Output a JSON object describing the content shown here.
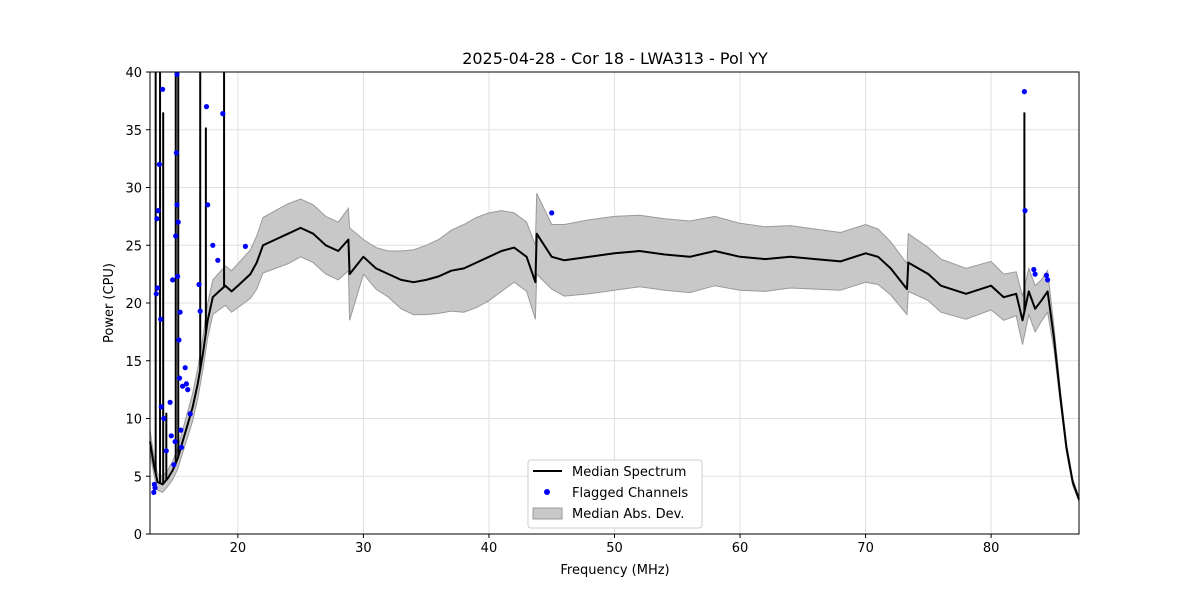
{
  "chart_data": {
    "type": "line",
    "title": "2025-04-28 - Cor 18 - LWA313 - Pol YY",
    "xlabel": "Frequency (MHz)",
    "ylabel": "Power (CPU)",
    "xlim": [
      13.0,
      87.0
    ],
    "ylim": [
      0,
      40
    ],
    "xticks": [
      20,
      30,
      40,
      50,
      60,
      70,
      80
    ],
    "yticks": [
      0,
      5,
      10,
      15,
      20,
      25,
      30,
      35,
      40
    ],
    "grid": true,
    "legend_position": "bottom-center",
    "legend": [
      "Median Spectrum",
      "Flagged Channels",
      "Median Abs. Dev."
    ],
    "colors": {
      "median": "#000000",
      "flagged": "#0000ff",
      "mad_fill": "#c8c8c8",
      "mad_edge": "#9a9a9a",
      "grid": "#e0e0e0"
    },
    "series": [
      {
        "name": "Median Spectrum",
        "x": [
          13.0,
          13.3,
          13.6,
          14.0,
          14.4,
          14.8,
          15.2,
          15.6,
          16.0,
          16.4,
          16.8,
          17.2,
          17.6,
          18.0,
          18.5,
          19.0,
          19.5,
          20.0,
          20.5,
          21.0,
          21.5,
          22.0,
          23.0,
          24.0,
          25.0,
          26.0,
          27.0,
          28.0,
          28.8,
          28.9,
          30.0,
          31.0,
          32.0,
          33.0,
          34.0,
          35.0,
          36.0,
          37.0,
          38.0,
          39.0,
          40.0,
          41.0,
          42.0,
          43.0,
          43.7,
          43.8,
          45.0,
          46.0,
          48.0,
          50.0,
          52.0,
          54.0,
          56.0,
          58.0,
          60.0,
          62.0,
          64.0,
          66.0,
          68.0,
          70.0,
          71.0,
          72.0,
          73.3,
          73.4,
          75.0,
          76.0,
          78.0,
          80.0,
          81.0,
          82.0,
          82.5,
          83.0,
          83.5,
          84.0,
          84.5,
          85.0,
          85.5,
          86.0,
          86.5,
          87.0
        ],
        "y": [
          8.0,
          6.0,
          4.5,
          4.3,
          4.8,
          5.5,
          6.5,
          8.0,
          9.5,
          11.0,
          13.0,
          15.5,
          18.5,
          20.5,
          21.0,
          21.5,
          21.0,
          21.5,
          22.0,
          22.5,
          23.5,
          25.0,
          25.5,
          26.0,
          26.5,
          26.0,
          25.0,
          24.5,
          25.5,
          22.5,
          24.0,
          23.0,
          22.5,
          22.0,
          21.8,
          22.0,
          22.3,
          22.8,
          23.0,
          23.5,
          24.0,
          24.5,
          24.8,
          24.0,
          21.8,
          26.0,
          24.0,
          23.7,
          24.0,
          24.3,
          24.5,
          24.2,
          24.0,
          24.5,
          24.0,
          23.8,
          24.0,
          23.8,
          23.6,
          24.3,
          24.0,
          23.0,
          21.2,
          23.5,
          22.5,
          21.5,
          20.8,
          21.5,
          20.5,
          20.8,
          18.5,
          21.0,
          19.5,
          20.2,
          21.0,
          17.0,
          12.0,
          7.5,
          4.5,
          3.0
        ]
      },
      {
        "name": "Median Abs. Dev.",
        "x": [
          13.0,
          13.3,
          13.6,
          14.0,
          14.4,
          14.8,
          15.2,
          15.6,
          16.0,
          16.4,
          16.8,
          17.2,
          17.6,
          18.0,
          18.5,
          19.0,
          19.5,
          20.0,
          20.5,
          21.0,
          21.5,
          22.0,
          23.0,
          24.0,
          25.0,
          26.0,
          27.0,
          28.0,
          28.8,
          28.9,
          30.0,
          31.0,
          32.0,
          33.0,
          34.0,
          35.0,
          36.0,
          37.0,
          38.0,
          39.0,
          40.0,
          41.0,
          42.0,
          43.0,
          43.7,
          43.8,
          45.0,
          46.0,
          48.0,
          50.0,
          52.0,
          54.0,
          56.0,
          58.0,
          60.0,
          62.0,
          64.0,
          66.0,
          68.0,
          70.0,
          71.0,
          72.0,
          73.3,
          73.4,
          75.0,
          76.0,
          78.0,
          80.0,
          81.0,
          82.0,
          82.5,
          83.0,
          83.5,
          84.0,
          84.5,
          85.0,
          85.5,
          86.0,
          86.5,
          87.0
        ],
        "upper": [
          9.0,
          6.8,
          5.2,
          5.0,
          5.5,
          6.3,
          7.4,
          9.0,
          10.6,
          12.2,
          14.3,
          16.9,
          20.0,
          22.0,
          22.6,
          23.2,
          22.8,
          23.4,
          24.0,
          24.6,
          25.8,
          27.4,
          28.0,
          28.6,
          29.0,
          28.5,
          27.5,
          27.0,
          28.2,
          26.5,
          25.5,
          24.8,
          24.5,
          24.5,
          24.6,
          25.0,
          25.5,
          26.3,
          26.8,
          27.4,
          27.8,
          28.0,
          27.8,
          27.0,
          25.0,
          29.5,
          26.8,
          26.8,
          27.2,
          27.5,
          27.6,
          27.3,
          27.1,
          27.5,
          26.9,
          26.6,
          26.7,
          26.4,
          26.1,
          26.8,
          26.4,
          25.3,
          23.4,
          26.0,
          24.8,
          23.8,
          23.0,
          23.6,
          22.5,
          22.7,
          20.6,
          23.0,
          21.5,
          22.0,
          22.8,
          18.0,
          12.6,
          7.9,
          4.8,
          3.2
        ],
        "lower": [
          7.0,
          5.2,
          3.8,
          3.6,
          4.1,
          4.7,
          5.6,
          7.0,
          8.4,
          9.8,
          11.7,
          14.1,
          17.0,
          19.0,
          19.4,
          19.8,
          19.2,
          19.6,
          20.0,
          20.4,
          21.2,
          22.6,
          23.0,
          23.4,
          24.0,
          23.5,
          22.5,
          22.0,
          22.8,
          18.5,
          22.5,
          21.2,
          20.5,
          19.5,
          19.0,
          19.0,
          19.1,
          19.3,
          19.2,
          19.6,
          20.2,
          21.0,
          21.8,
          21.0,
          18.6,
          22.5,
          21.2,
          20.6,
          20.8,
          21.1,
          21.4,
          21.1,
          20.9,
          21.5,
          21.1,
          21.0,
          21.3,
          21.2,
          21.1,
          21.8,
          21.6,
          20.7,
          19.0,
          21.0,
          20.2,
          19.2,
          18.6,
          19.4,
          18.5,
          18.9,
          16.4,
          19.0,
          17.5,
          18.4,
          19.2,
          16.0,
          11.4,
          7.1,
          4.2,
          2.8
        ]
      }
    ],
    "spikes": [
      {
        "x": 13.45,
        "y": 40
      },
      {
        "x": 13.8,
        "y": 40
      },
      {
        "x": 14.05,
        "y": 36.5
      },
      {
        "x": 14.3,
        "y": 10.5
      },
      {
        "x": 15.05,
        "y": 40
      },
      {
        "x": 15.25,
        "y": 40
      },
      {
        "x": 17.0,
        "y": 40
      },
      {
        "x": 17.45,
        "y": 35.2
      },
      {
        "x": 18.9,
        "y": 40
      },
      {
        "x": 82.65,
        "y": 36.5
      }
    ],
    "flagged_channels": {
      "name": "Flagged Channels",
      "x": [
        13.3,
        13.4,
        13.5,
        13.55,
        13.65,
        13.75,
        13.85,
        13.9,
        14.0,
        14.1,
        14.3,
        14.6,
        14.8,
        14.9,
        15.0,
        15.05,
        15.1,
        15.15,
        15.15,
        15.2,
        15.25,
        15.3,
        15.35,
        15.4,
        15.45,
        15.5,
        15.8,
        15.9,
        16.0,
        16.2,
        16.9,
        17.0,
        17.5,
        17.6,
        18.0,
        18.4,
        18.8,
        20.6,
        45.0,
        82.65,
        82.7,
        83.4,
        83.5,
        84.4,
        84.5,
        13.35,
        13.6,
        14.7,
        15.6
      ],
      "y": [
        3.6,
        4.0,
        20.8,
        27.3,
        28.0,
        32.0,
        18.6,
        11.0,
        38.5,
        10.0,
        7.2,
        11.4,
        22.0,
        6.0,
        8.0,
        25.8,
        33.0,
        39.8,
        28.5,
        22.3,
        27.0,
        16.8,
        13.5,
        19.2,
        9.0,
        7.5,
        14.4,
        13.0,
        12.5,
        10.4,
        21.6,
        19.3,
        37.0,
        28.5,
        25.0,
        23.7,
        36.4,
        24.9,
        27.8,
        38.3,
        28.0,
        22.9,
        22.5,
        22.4,
        22.0,
        4.3,
        21.3,
        8.5,
        12.8
      ]
    }
  }
}
